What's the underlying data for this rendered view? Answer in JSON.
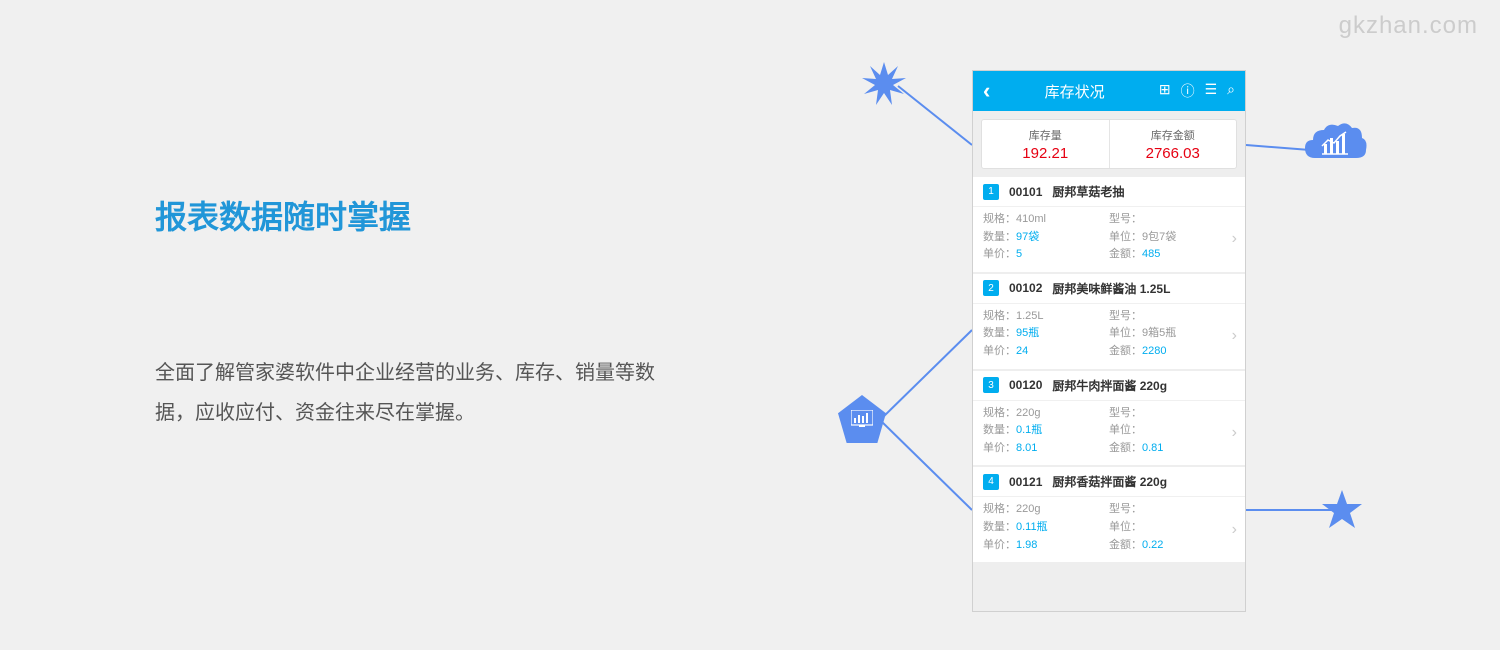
{
  "watermark": "gkzhan.com",
  "title": "报表数据随时掌握",
  "description": "全面了解管家婆软件中企业经营的业务、库存、销量等数据，应收应付、资金往来尽在掌握。",
  "phone": {
    "title": "库存状况",
    "summary": {
      "left_label": "库存量",
      "left_value": "192.21",
      "right_label": "库存金额",
      "right_value": "2766.03"
    },
    "items": [
      {
        "num": "1",
        "code": "00101",
        "name": "厨邦草菇老抽",
        "spec_k": "规格：",
        "spec_v": "410ml",
        "model_k": "型号：",
        "model_v": "",
        "qty_k": "数量：",
        "qty_v": "97袋",
        "unit_k": "单位：",
        "unit_v": "9包7袋",
        "price_k": "单价：",
        "price_v": "5",
        "amount_k": "金额：",
        "amount_v": "485"
      },
      {
        "num": "2",
        "code": "00102",
        "name": "厨邦美味鲜酱油 1.25L",
        "spec_k": "规格：",
        "spec_v": "1.25L",
        "model_k": "型号：",
        "model_v": "",
        "qty_k": "数量：",
        "qty_v": "95瓶",
        "unit_k": "单位：",
        "unit_v": "9箱5瓶",
        "price_k": "单价：",
        "price_v": "24",
        "amount_k": "金额：",
        "amount_v": "2280"
      },
      {
        "num": "3",
        "code": "00120",
        "name": "厨邦牛肉拌面酱 220g",
        "spec_k": "规格：",
        "spec_v": "220g",
        "model_k": "型号：",
        "model_v": "",
        "qty_k": "数量：",
        "qty_v": "0.1瓶",
        "unit_k": "单位：",
        "unit_v": "",
        "price_k": "单价：",
        "price_v": "8.01",
        "amount_k": "金额：",
        "amount_v": "0.81"
      },
      {
        "num": "4",
        "code": "00121",
        "name": "厨邦香菇拌面酱 220g",
        "spec_k": "规格：",
        "spec_v": "220g",
        "model_k": "型号：",
        "model_v": "",
        "qty_k": "数量：",
        "qty_v": "0.11瓶",
        "unit_k": "单位：",
        "unit_v": "",
        "price_k": "单价：",
        "price_v": "1.98",
        "amount_k": "金额：",
        "amount_v": "0.22"
      }
    ]
  },
  "colors": {
    "accent": "#00adef",
    "decoration": "#5b8def",
    "title": "#2196d8",
    "value": "#e60012"
  }
}
